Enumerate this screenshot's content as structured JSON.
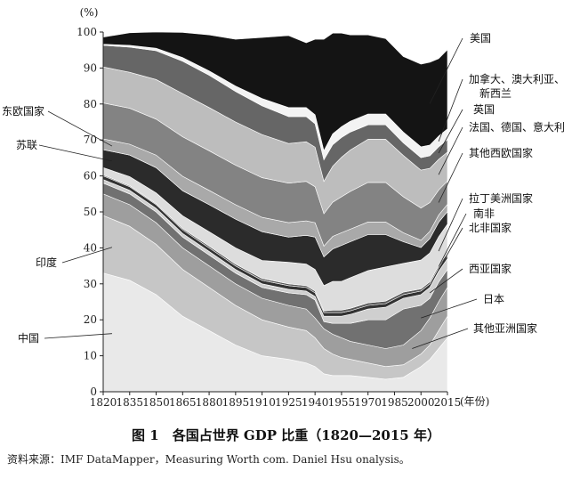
{
  "caption": "图 1　各国占世界 GDP 比重（1820—2015 年）",
  "source": "资料来源：IMF DataMapper，Measuring Worth com. Daniel Hsu onalysis。",
  "chart_data": {
    "type": "area",
    "stacked": true,
    "title": "",
    "xlabel": "(年份)",
    "ylabel": "(%)",
    "xlim": [
      1820,
      2015
    ],
    "ylim": [
      0,
      100
    ],
    "x_ticks": [
      1820,
      1835,
      1850,
      1865,
      1880,
      1895,
      1910,
      1925,
      1940,
      1955,
      1970,
      1985,
      2000,
      2015
    ],
    "y_ticks": [
      0,
      10,
      20,
      30,
      40,
      50,
      60,
      70,
      80,
      90,
      100
    ],
    "x": [
      1820,
      1835,
      1850,
      1865,
      1880,
      1895,
      1910,
      1925,
      1935,
      1940,
      1945,
      1950,
      1955,
      1960,
      1970,
      1980,
      1990,
      2000,
      2005,
      2010,
      2015
    ],
    "series": [
      {
        "name": "中国",
        "color": "#e9e9e9",
        "values": [
          33,
          31,
          27,
          21,
          17,
          13,
          10,
          9,
          8,
          7,
          5,
          4.5,
          4.5,
          4.5,
          4,
          3.5,
          4,
          7,
          9,
          12,
          15
        ]
      },
      {
        "name": "印度",
        "color": "#c6c6c6",
        "values": [
          16,
          15,
          14,
          13,
          12,
          11,
          10,
          9,
          9,
          8,
          7,
          6,
          5,
          4.5,
          4,
          3.5,
          3.5,
          3.5,
          4,
          5,
          6
        ]
      },
      {
        "name": "其他亚洲国家",
        "color": "#9e9e9e",
        "values": [
          6,
          6,
          6,
          6,
          6,
          6,
          6,
          6,
          6,
          5.5,
          5.5,
          5.5,
          5.5,
          5,
          5,
          5,
          5.5,
          6.5,
          7.5,
          8,
          8
        ]
      },
      {
        "name": "日本",
        "color": "#717171",
        "values": [
          3,
          3,
          3,
          3,
          3,
          3,
          3,
          3.5,
          4,
          5,
          2,
          3,
          4,
          5,
          7,
          8,
          10,
          7,
          5.5,
          5.5,
          5
        ]
      },
      {
        "name": "西亚国家",
        "color": "#cfcfcf",
        "values": [
          1,
          1,
          1,
          1,
          1,
          1,
          1,
          1,
          1,
          1,
          1.5,
          2,
          2,
          2.5,
          3,
          3.5,
          3,
          3,
          3,
          3,
          3
        ]
      },
      {
        "name": "北非国家",
        "color": "#333333",
        "values": [
          1,
          1,
          1,
          1,
          1,
          1,
          1,
          1,
          1,
          1,
          1,
          1,
          1,
          1,
          1,
          1,
          1,
          1,
          1,
          1,
          1
        ]
      },
      {
        "name": "南非",
        "color": "#5a5a5a",
        "values": [
          0.3,
          0.3,
          0.3,
          0.4,
          0.5,
          0.5,
          0.5,
          0.5,
          0.5,
          0.5,
          0.5,
          0.7,
          0.7,
          0.7,
          0.7,
          0.7,
          0.7,
          0.6,
          0.6,
          0.6,
          0.6
        ]
      },
      {
        "name": "拉丁美洲国家",
        "color": "#dddddd",
        "values": [
          2,
          2.5,
          3,
          3.5,
          4,
          4.5,
          5,
          6,
          6,
          6,
          7,
          8,
          8,
          8.5,
          9,
          9.5,
          8,
          8,
          8,
          8,
          8
        ]
      },
      {
        "name": "苏联",
        "color": "#2b2b2b",
        "values": [
          5,
          6,
          7,
          7,
          7.5,
          8,
          8,
          7,
          8,
          9,
          8,
          9,
          10,
          10,
          10,
          9,
          6,
          3.5,
          4,
          4,
          3.5
        ]
      },
      {
        "name": "东欧国家",
        "color": "#a9a9a9",
        "values": [
          3,
          3,
          3.5,
          4,
          4,
          4,
          4,
          4,
          4,
          4,
          3,
          3.5,
          3.5,
          3.5,
          3.5,
          3.5,
          2.5,
          2,
          2,
          2,
          2
        ]
      },
      {
        "name": "其他西欧国家",
        "color": "#838383",
        "values": [
          10,
          10,
          10,
          11,
          11,
          11,
          11,
          11,
          11,
          10,
          9,
          9.5,
          10,
          10.5,
          11,
          11,
          10,
          9,
          8,
          7,
          6.5
        ]
      },
      {
        "name": "法国、德国、意大利",
        "color": "#bdbdbd",
        "values": [
          10,
          10,
          11,
          12,
          12,
          12,
          12,
          11,
          11,
          11,
          9,
          10,
          11,
          11.5,
          12,
          12,
          11.5,
          10.5,
          9.5,
          8.5,
          8
        ]
      },
      {
        "name": "英国",
        "color": "#666666",
        "values": [
          6,
          7,
          8,
          9,
          9,
          8.5,
          8,
          7.5,
          7,
          6.5,
          6,
          6,
          5.5,
          5,
          4,
          4,
          3.5,
          3.5,
          3.5,
          3.5,
          3.5
        ]
      },
      {
        "name": "加拿大、澳大利亚、新西兰",
        "color": "#f3f3f3",
        "values": [
          0.3,
          0.5,
          0.7,
          1,
          1.2,
          1.5,
          2,
          2.5,
          2.5,
          2.5,
          2.5,
          3,
          3,
          3,
          3,
          3,
          3,
          3,
          3,
          3,
          3
        ]
      },
      {
        "name": "美国",
        "color": "#141414",
        "values": [
          2,
          3.5,
          5,
          7,
          10,
          13,
          17,
          20,
          18,
          21,
          31,
          28,
          26,
          24,
          22,
          21,
          21,
          23,
          23,
          21.5,
          22
        ]
      }
    ],
    "legend": "right"
  }
}
